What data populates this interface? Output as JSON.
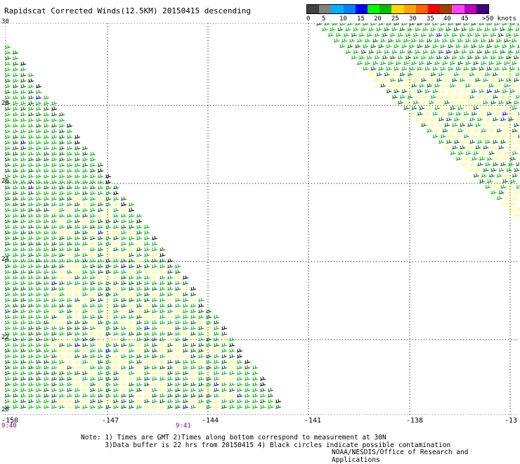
{
  "header": {
    "title": "Rapidscat Corrected Winds(12.5KM) 20150415 descending"
  },
  "legend": {
    "colors": [
      "#404040",
      "#808080",
      "#00b0ff",
      "#0080ff",
      "#0000ff",
      "#00ff00",
      "#00c000",
      "#ffd700",
      "#ffa500",
      "#ff6000",
      "#ff0000",
      "#a04000",
      "#ff40ff",
      "#c000c0",
      "#400080"
    ],
    "labels": [
      "0",
      "5",
      "10",
      "15",
      "20",
      "25",
      "30",
      "35",
      "40",
      "45",
      ">50 knots"
    ]
  },
  "map": {
    "lat_labels": [
      "30",
      "28",
      "26",
      "24",
      "22",
      "20"
    ],
    "lon_labels": [
      "-150",
      "-147",
      "-144",
      "-141",
      "-138",
      "-13"
    ],
    "times": [
      "9:40",
      "9:41"
    ],
    "barb_colors": {
      "green": "#00b000",
      "dark_green": "#006400",
      "yellow": "#ffff40",
      "blue": "#0000c0",
      "black": "#000000"
    }
  },
  "notes": {
    "line1": "Note: 1) Times are GMT 2)Times along bottom correspond to measurement at 30N",
    "line2": "3)Data buffer is 22 hrs from 20150415 4) Black circles indicate possible contamination",
    "credit": "NOAA/NESDIS/Office of Research and Applications"
  }
}
